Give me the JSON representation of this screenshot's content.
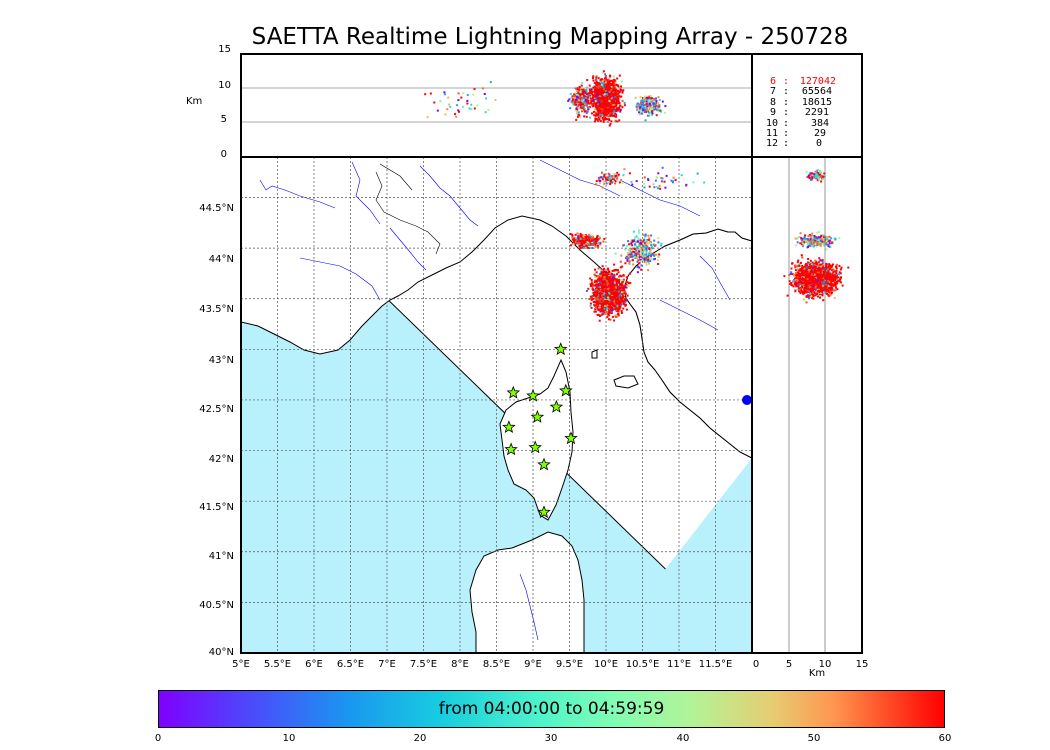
{
  "title": "SAETTA Realtime Lightning Mapping Array - 250728",
  "alt_axis": {
    "label": "Km",
    "ticks": [
      "15",
      "10",
      "5",
      "0"
    ]
  },
  "side_axis": {
    "label": "Km",
    "ticks": [
      "0",
      "5",
      "10",
      "15"
    ]
  },
  "lat_ticks": [
    "44.5°N",
    "44°N",
    "43.5°N",
    "43°N",
    "42.5°N",
    "42°N",
    "41.5°N",
    "41°N",
    "40.5°N",
    "40°N"
  ],
  "lon_ticks": [
    "5°E",
    "5.5°E",
    "6°E",
    "6.5°E",
    "7°E",
    "7.5°E",
    "8°E",
    "8.5°E",
    "9°E",
    "9.5°E",
    "10°E",
    "10.5°E",
    "11°E",
    "11.5°E"
  ],
  "station_stats": [
    {
      "label": "6",
      "count": "127042",
      "highlight": true
    },
    {
      "label": "7",
      "count": "65564",
      "highlight": false
    },
    {
      "label": "8",
      "count": "18615",
      "highlight": false
    },
    {
      "label": "9",
      "count": "2291",
      "highlight": false
    },
    {
      "label": "10",
      "count": "384",
      "highlight": false
    },
    {
      "label": "11",
      "count": "29",
      "highlight": false
    },
    {
      "label": "12",
      "count": "0",
      "highlight": false
    }
  ],
  "colorbar": {
    "text": "from 04:00:00 to 04:59:59",
    "ticks": [
      "0",
      "10",
      "20",
      "30",
      "40",
      "50",
      "60"
    ],
    "min": 0,
    "max": 60
  },
  "stations": [
    {
      "lon": 9.38,
      "lat": 43.0
    },
    {
      "lon": 8.73,
      "lat": 42.57
    },
    {
      "lon": 9.0,
      "lat": 42.54
    },
    {
      "lon": 9.45,
      "lat": 42.59
    },
    {
      "lon": 9.32,
      "lat": 42.43
    },
    {
      "lon": 9.06,
      "lat": 42.33
    },
    {
      "lon": 8.67,
      "lat": 42.23
    },
    {
      "lon": 9.52,
      "lat": 42.12
    },
    {
      "lon": 8.7,
      "lat": 42.01
    },
    {
      "lon": 9.03,
      "lat": 42.03
    },
    {
      "lon": 9.15,
      "lat": 41.86
    },
    {
      "lon": 9.15,
      "lat": 41.39
    }
  ],
  "colors": {
    "sea": "#b8f0fc",
    "land": "#ffffff",
    "coast": "#000000",
    "river": "#0000ff",
    "grid": "#555555",
    "star_fill": "#7fff00",
    "stat_highlight": "#ff0000"
  }
}
